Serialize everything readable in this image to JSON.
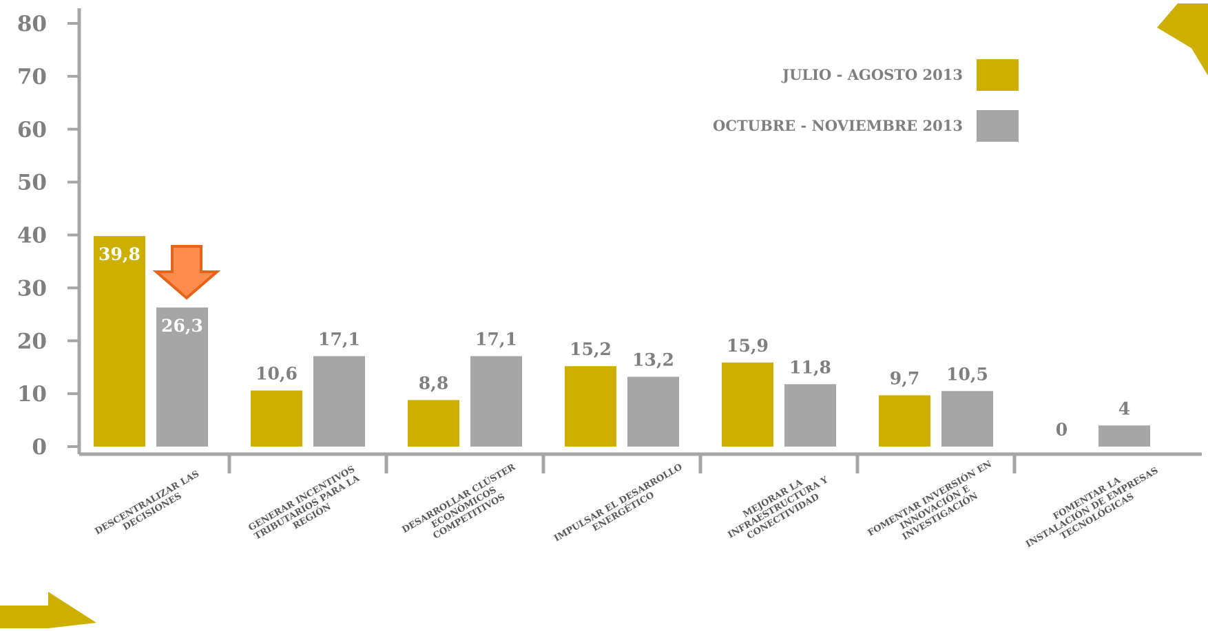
{
  "chart_data": {
    "type": "bar",
    "categories": [
      "DESCENTRALIZAR LAS\nDECISIONES",
      "GENERAR INCENTIVOS\nTRIBUTARIOS PARA LA\nREGIÓN",
      "DESARROLLAR CLÚSTER\nECONÓMICOS\nCOMPETITIVOS",
      "IMPULSAR EL DESARROLLO\nENERGÉTICO",
      "MEJORAR LA\nINFRAESTRUCTURA Y\nCONECTIVIDAD",
      "FOMENTAR INVERSIÓN EN\nINNOVACIÓN E\nINVESTIGACIÓN",
      "FOMENTAR LA\nINSTALACIÓN DE EMPRESAS\nTECNOLÓGICAS"
    ],
    "series": [
      {
        "name": "JULIO - AGOSTO 2013",
        "color": "#ccaf00",
        "values": [
          39.8,
          10.6,
          8.8,
          15.2,
          15.9,
          9.7,
          0
        ],
        "value_labels": [
          "39,8",
          "10,6",
          "8,8",
          "15,2",
          "15,9",
          "9,7",
          "0"
        ]
      },
      {
        "name": "OCTUBRE - NOVIEMBRE 2013",
        "color": "#a6a6a6",
        "values": [
          26.3,
          17.1,
          17.1,
          13.2,
          11.8,
          10.5,
          4
        ],
        "value_labels": [
          "26,3",
          "17,1",
          "17,1",
          "13,2",
          "11,8",
          "10,5",
          "4"
        ]
      }
    ],
    "ylim": [
      0,
      80
    ],
    "yticks": [
      0,
      10,
      20,
      30,
      40,
      50,
      60,
      70,
      80
    ],
    "legend": "upper right"
  }
}
